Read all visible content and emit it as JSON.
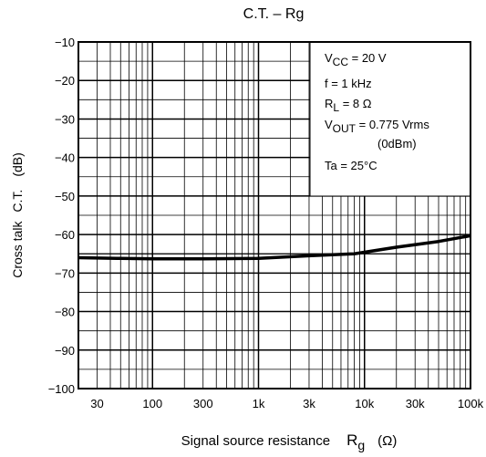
{
  "chart_data": {
    "type": "line",
    "title": "C.T. – Rg",
    "xlabel": {
      "text": "Signal source resistance",
      "symbol": "R",
      "symbol_sub": "g",
      "unit": "(Ω)"
    },
    "ylabel": {
      "text": "Cross talk",
      "symbol": "C.T.",
      "unit": "(dB)"
    },
    "x_scale": "log",
    "xlim": [
      20,
      100000
    ],
    "ylim": [
      -100,
      -10
    ],
    "x_ticks": [
      {
        "value": 30,
        "label": "30"
      },
      {
        "value": 100,
        "label": "100"
      },
      {
        "value": 300,
        "label": "300"
      },
      {
        "value": 1000,
        "label": "1k"
      },
      {
        "value": 3000,
        "label": "3k"
      },
      {
        "value": 10000,
        "label": "10k"
      },
      {
        "value": 30000,
        "label": "30k"
      },
      {
        "value": 100000,
        "label": "100k"
      }
    ],
    "y_ticks": [
      {
        "value": -10,
        "label": "−10"
      },
      {
        "value": -20,
        "label": "−20"
      },
      {
        "value": -30,
        "label": "−30"
      },
      {
        "value": -40,
        "label": "−40"
      },
      {
        "value": -50,
        "label": "−50"
      },
      {
        "value": -60,
        "label": "−60"
      },
      {
        "value": -70,
        "label": "−70"
      },
      {
        "value": -80,
        "label": "−80"
      },
      {
        "value": -90,
        "label": "−90"
      },
      {
        "value": -100,
        "label": "−100"
      }
    ],
    "grid": true,
    "reference_lines": [
      {
        "y": -65
      }
    ],
    "series": [
      {
        "x": [
          20,
          50,
          100,
          300,
          1000,
          3000,
          8000,
          20000,
          50000,
          100000
        ],
        "y": [
          -66,
          -66.2,
          -66.3,
          -66.3,
          -66.2,
          -65.5,
          -65,
          -63.3,
          -61.8,
          -60.3
        ]
      }
    ],
    "annotation": {
      "lines": [
        {
          "main": "V",
          "sub": "CC",
          "rest": " = 20 V"
        },
        {
          "main": "f = 1 kHz",
          "sub": "",
          "rest": ""
        },
        {
          "main": "R",
          "sub": "L",
          "rest": " = 8 Ω"
        },
        {
          "main": "V",
          "sub": "OUT",
          "rest": " = 0.775 Vrms"
        },
        {
          "main": "(0dBm)",
          "sub": "",
          "rest": ""
        },
        {
          "main": "Ta = 25°C",
          "sub": "",
          "rest": ""
        }
      ]
    }
  }
}
